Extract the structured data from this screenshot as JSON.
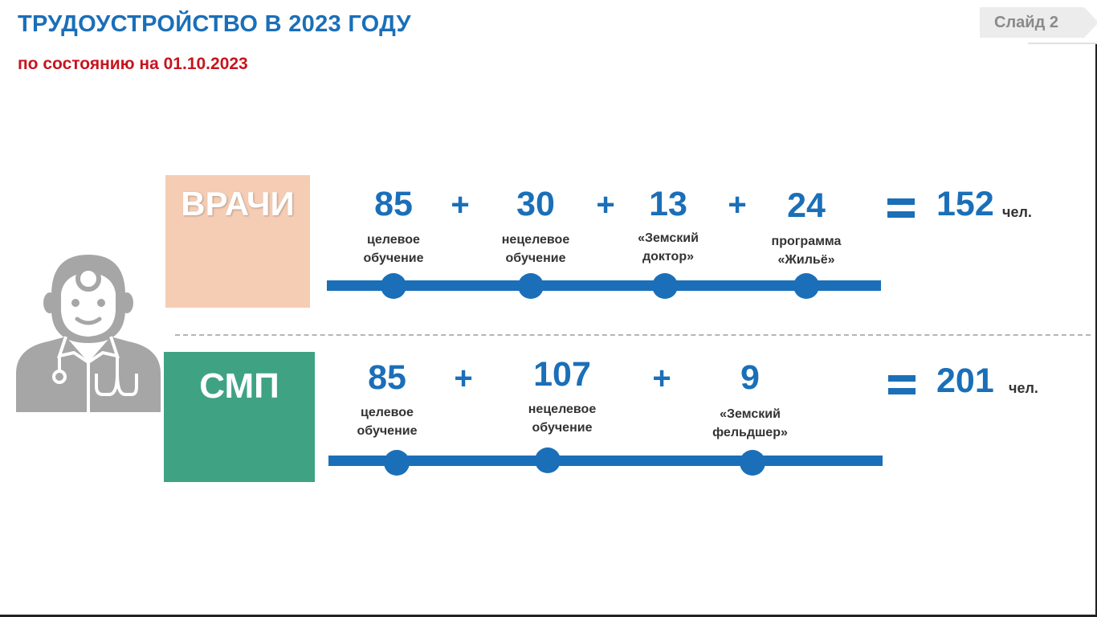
{
  "header": {
    "title": "ТРУДОУСТРОЙСТВО В 2023 ГОДУ",
    "subtitle": "по состоянию на 01.10.2023",
    "slide_label": "Слайд 2"
  },
  "colors": {
    "accent_blue": "#1a6fb8",
    "subtitle_red": "#c8141e",
    "doctors_box": "#f5cdb4",
    "smp_box": "#3fa383"
  },
  "icons": {
    "person": "doctor-with-stethoscope-icon"
  },
  "rows": {
    "doctors": {
      "label": "ВРАЧИ",
      "items": [
        {
          "value": "85",
          "caption_line1": "целевое",
          "caption_line2": "обучение"
        },
        {
          "value": "30",
          "caption_line1": "нецелевое",
          "caption_line2": "обучение"
        },
        {
          "value": "13",
          "caption_line1": "«Земский",
          "caption_line2": "доктор»"
        },
        {
          "value": "24",
          "caption_line1": "программа",
          "caption_line2": "«Жильё»"
        }
      ],
      "total": "152",
      "unit": "чел."
    },
    "smp": {
      "label": "СМП",
      "items": [
        {
          "value": "85",
          "caption_line1": "целевое",
          "caption_line2": "обучение"
        },
        {
          "value": "107",
          "caption_line1": "нецелевое",
          "caption_line2": "обучение"
        },
        {
          "value": "9",
          "caption_line1": "«Земский",
          "caption_line2": "фельдшер»"
        }
      ],
      "total": "201",
      "unit": "чел."
    }
  }
}
